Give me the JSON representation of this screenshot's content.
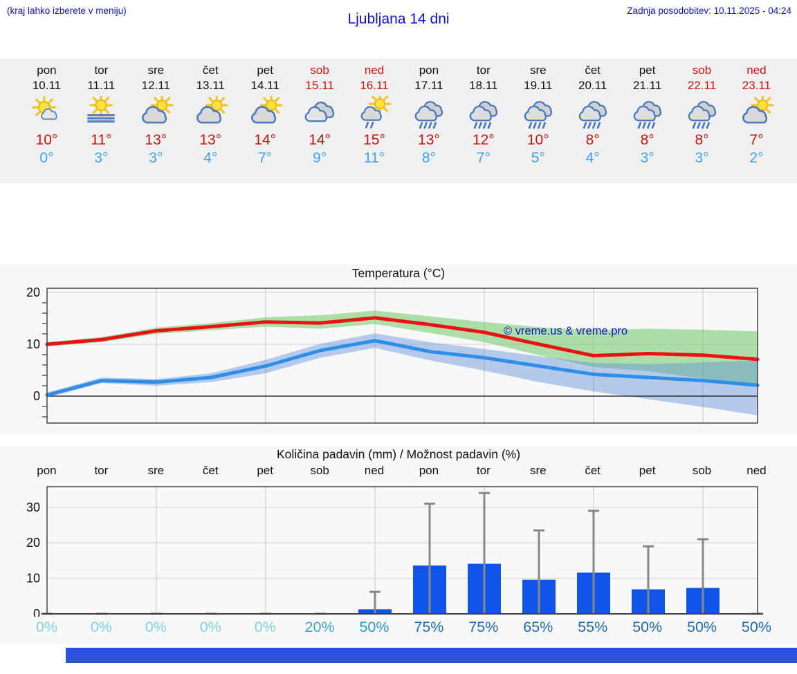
{
  "header": {
    "hint": "(kraj lahko izberete v meniju)",
    "title": "Ljubljana 14 dni",
    "updated": "Zadnja posodobitev: 10.11.2025 - 04:24"
  },
  "watermark": "© vreme.us & vreme.pro",
  "days": [
    {
      "name": "pon",
      "date": "10.11",
      "weekend": false,
      "icon": "sun-small-cloud",
      "hi": "10°",
      "lo": "0°"
    },
    {
      "name": "tor",
      "date": "11.11",
      "weekend": false,
      "icon": "sun-fog",
      "hi": "11°",
      "lo": "3°"
    },
    {
      "name": "sre",
      "date": "12.11",
      "weekend": false,
      "icon": "cloud-sun",
      "hi": "13°",
      "lo": "3°"
    },
    {
      "name": "čet",
      "date": "13.11",
      "weekend": false,
      "icon": "cloud-sun",
      "hi": "13°",
      "lo": "4°"
    },
    {
      "name": "pet",
      "date": "14.11",
      "weekend": false,
      "icon": "cloud-sun",
      "hi": "14°",
      "lo": "7°"
    },
    {
      "name": "sob",
      "date": "15.11",
      "weekend": true,
      "icon": "cloudy",
      "hi": "14°",
      "lo": "9°"
    },
    {
      "name": "ned",
      "date": "16.11",
      "weekend": true,
      "icon": "sun-rain",
      "hi": "15°",
      "lo": "11°"
    },
    {
      "name": "pon",
      "date": "17.11",
      "weekend": false,
      "icon": "rain",
      "hi": "13°",
      "lo": "8°"
    },
    {
      "name": "tor",
      "date": "18.11",
      "weekend": false,
      "icon": "rain",
      "hi": "12°",
      "lo": "7°"
    },
    {
      "name": "sre",
      "date": "19.11",
      "weekend": false,
      "icon": "rain",
      "hi": "10°",
      "lo": "5°"
    },
    {
      "name": "čet",
      "date": "20.11",
      "weekend": false,
      "icon": "rain",
      "hi": "8°",
      "lo": "4°"
    },
    {
      "name": "pet",
      "date": "21.11",
      "weekend": false,
      "icon": "rain",
      "hi": "8°",
      "lo": "3°"
    },
    {
      "name": "sob",
      "date": "22.11",
      "weekend": true,
      "icon": "rain",
      "hi": "8°",
      "lo": "3°"
    },
    {
      "name": "ned",
      "date": "23.11",
      "weekend": true,
      "icon": "cloud-sun",
      "hi": "7°",
      "lo": "2°"
    }
  ],
  "chart_data": [
    {
      "type": "line",
      "title": "Temperatura (°C)",
      "categories": [
        "pon",
        "tor",
        "sre",
        "čet",
        "pet",
        "sob",
        "ned",
        "pon",
        "tor",
        "sre",
        "čet",
        "pet",
        "sob",
        "ned"
      ],
      "ylim": [
        -5.2,
        20.8
      ],
      "yticks": [
        0,
        10,
        20
      ],
      "grid": true,
      "series": [
        {
          "name": "max temperature",
          "color": "#e81414",
          "values": [
            10.0,
            10.9,
            12.6,
            13.4,
            14.3,
            14.1,
            15.1,
            13.8,
            12.3,
            10.0,
            7.8,
            8.2,
            7.9,
            7.1
          ]
        },
        {
          "name": "min temperature",
          "color": "#2e8fe8",
          "values": [
            0.2,
            3.0,
            2.7,
            3.6,
            5.8,
            8.8,
            10.7,
            8.6,
            7.4,
            5.8,
            4.2,
            3.6,
            3.0,
            2.1
          ]
        }
      ],
      "bands": [
        {
          "series": "max range",
          "color": "rgba(110,200,100,0.55)",
          "upper": [
            10.4,
            11.4,
            13.2,
            14.1,
            15.2,
            15.6,
            16.5,
            15.4,
            14.3,
            13.3,
            12.7,
            13.0,
            12.8,
            12.5
          ],
          "lower": [
            9.6,
            10.4,
            12.0,
            12.7,
            13.4,
            13.0,
            13.9,
            12.2,
            10.4,
            7.9,
            5.6,
            4.8,
            3.4,
            1.7
          ]
        },
        {
          "series": "min range",
          "color": "rgba(100,145,220,0.45)",
          "upper": [
            0.7,
            3.6,
            3.3,
            4.4,
            7.0,
            10.1,
            12.1,
            10.4,
            9.1,
            7.7,
            6.4,
            6.2,
            6.5,
            6.9
          ],
          "lower": [
            -0.3,
            2.5,
            2.0,
            2.7,
            4.4,
            7.4,
            9.3,
            6.9,
            4.9,
            2.7,
            0.9,
            -0.6,
            -2.1,
            -3.7
          ]
        }
      ]
    },
    {
      "type": "bar",
      "title": "Količina padavin (mm) / Možnost padavin (%)",
      "categories": [
        "pon",
        "tor",
        "sre",
        "čet",
        "pet",
        "sob",
        "ned",
        "pon",
        "tor",
        "sre",
        "čet",
        "pet",
        "sob",
        "ned"
      ],
      "ylim": [
        0,
        35.8
      ],
      "yticks": [
        0,
        10,
        20,
        30
      ],
      "grid": true,
      "values_mm": [
        0,
        0,
        0,
        0,
        0,
        0.1,
        1.3,
        13.6,
        14.1,
        9.6,
        11.6,
        6.9,
        7.3,
        0.2
      ],
      "whisker_max_mm": [
        0,
        0,
        0,
        0,
        0,
        0.4,
        6.2,
        31,
        34,
        23.5,
        29,
        19,
        21,
        0.5
      ],
      "probabilities": [
        "0%",
        "0%",
        "0%",
        "0%",
        "0%",
        "20%",
        "50%",
        "75%",
        "75%",
        "65%",
        "55%",
        "50%",
        "50%",
        "50%"
      ],
      "probability_colors": [
        "#7cd2e8",
        "#7cd2e8",
        "#7cd2e8",
        "#7cd2e8",
        "#7cd2e8",
        "#3fa3da",
        "#2a97ce",
        "#1c6bb4",
        "#1c6bb4",
        "#1c6bb4",
        "#1c6bb4",
        "#1c6bb4",
        "#1c6bb4",
        "#1c6bb4"
      ],
      "bar_color": "#1155e8",
      "whisker_color": "#888888"
    }
  ],
  "colors": {
    "header_blue": "#0f0fc4",
    "weekend_red": "#cc1111",
    "hi_temp_red": "#cc1111",
    "lo_temp_blue": "#3ea2f4",
    "day_strip_bg": "#f0f0f0",
    "chart_bg": "#f8f8f8",
    "footer_bar_blue": "#2b50df",
    "watermark_blue": "#1511cc"
  }
}
